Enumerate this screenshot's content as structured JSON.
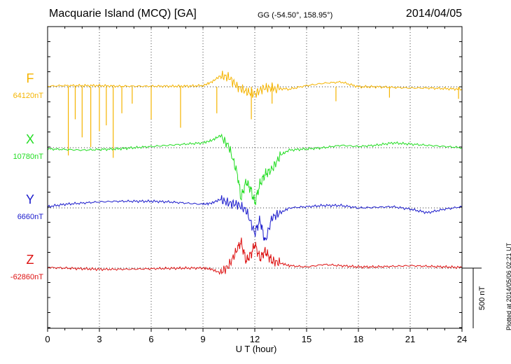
{
  "header": {
    "title": "Macquarie Island (MCQ)  [GA]",
    "coords": "GG (-54.50°, 158.95°)",
    "date": "2014/04/05"
  },
  "footer": {
    "plotted": "Plotted at 2014/05/06 02:21  UT"
  },
  "chart_data": {
    "type": "line",
    "title": "Macquarie Island (MCQ)  [GA]",
    "xlabel": "U T (hour)",
    "ylabel": "",
    "xlim": [
      0,
      24
    ],
    "x_ticks": [
      "0",
      "3",
      "6",
      "9",
      "12",
      "15",
      "18",
      "21",
      "24"
    ],
    "scale_bar": {
      "label": "500 nT",
      "value_nT": 500
    },
    "grid": true,
    "series": [
      {
        "name": "F",
        "baseline_label": "64120nT",
        "baseline": 64120,
        "color": "#f5b400",
        "x": [
          0,
          1,
          2,
          3,
          4,
          5,
          6,
          7,
          8,
          9,
          9.5,
          10,
          10.5,
          11,
          11.5,
          12,
          12.5,
          13,
          14,
          15,
          16,
          17,
          18,
          19,
          20,
          21,
          22,
          23,
          24
        ],
        "values": [
          64125,
          64130,
          64130,
          64130,
          64125,
          64125,
          64125,
          64125,
          64125,
          64130,
          64160,
          64210,
          64200,
          64120,
          64080,
          64060,
          64110,
          64110,
          64100,
          64130,
          64150,
          64160,
          64120,
          64120,
          64115,
          64110,
          64110,
          64105,
          64100
        ],
        "spikes": [
          {
            "x": 1.2,
            "value": 63550
          },
          {
            "x": 1.6,
            "value": 63850
          },
          {
            "x": 2.0,
            "value": 63700
          },
          {
            "x": 2.5,
            "value": 63620
          },
          {
            "x": 3.0,
            "value": 63750
          },
          {
            "x": 3.4,
            "value": 63800
          },
          {
            "x": 3.8,
            "value": 63530
          },
          {
            "x": 4.3,
            "value": 63900
          },
          {
            "x": 4.9,
            "value": 63980
          },
          {
            "x": 6.0,
            "value": 63850
          },
          {
            "x": 7.7,
            "value": 63780
          },
          {
            "x": 9.8,
            "value": 63900
          },
          {
            "x": 11.8,
            "value": 63850
          },
          {
            "x": 13.0,
            "value": 63980
          },
          {
            "x": 16.7,
            "value": 64000
          },
          {
            "x": 19.8,
            "value": 64030
          },
          {
            "x": 23.8,
            "value": 64020
          }
        ]
      },
      {
        "name": "X",
        "baseline_label": "10780nT",
        "baseline": 10780,
        "color": "#22dd22",
        "x": [
          0,
          1,
          2,
          3,
          4,
          5,
          6,
          7,
          8,
          9,
          9.5,
          10,
          10.5,
          11,
          11.2,
          11.5,
          11.8,
          12,
          12.3,
          12.6,
          13,
          13.5,
          14,
          15,
          16,
          17,
          18,
          19,
          20,
          21,
          22,
          23,
          24
        ],
        "values": [
          10770,
          10765,
          10760,
          10765,
          10770,
          10780,
          10790,
          10800,
          10810,
          10820,
          10840,
          10880,
          10790,
          10560,
          10360,
          10500,
          10420,
          10320,
          10480,
          10560,
          10600,
          10720,
          10760,
          10770,
          10780,
          10800,
          10790,
          10800,
          10820,
          10810,
          10800,
          10790,
          10780
        ]
      },
      {
        "name": "Y",
        "baseline_label": "6660nT",
        "baseline": 6660,
        "color": "#1a1acc",
        "x": [
          0,
          1,
          2,
          3,
          4,
          5,
          6,
          7,
          8,
          9,
          9.5,
          10,
          10.5,
          11,
          11.5,
          12,
          12.3,
          12.6,
          13,
          13.5,
          14,
          15,
          16,
          17,
          18,
          19,
          20,
          21,
          22,
          23,
          24
        ],
        "values": [
          6670,
          6690,
          6700,
          6710,
          6715,
          6715,
          6715,
          6710,
          6700,
          6690,
          6700,
          6730,
          6700,
          6690,
          6640,
          6450,
          6560,
          6380,
          6580,
          6620,
          6660,
          6670,
          6680,
          6680,
          6660,
          6665,
          6670,
          6650,
          6620,
          6650,
          6670
        ]
      },
      {
        "name": "Z",
        "baseline_label": "-62860nT",
        "baseline": -62860,
        "color": "#dd1111",
        "x": [
          0,
          1,
          2,
          3,
          4,
          5,
          6,
          7,
          8,
          9,
          9.5,
          10,
          10.5,
          11,
          11.2,
          11.5,
          11.8,
          12,
          12.3,
          12.6,
          13,
          13.5,
          14,
          15,
          16,
          17,
          18,
          19,
          20,
          21,
          22,
          23,
          24
        ],
        "values": [
          -62855,
          -62860,
          -62865,
          -62870,
          -62870,
          -62868,
          -62865,
          -62862,
          -62860,
          -62860,
          -62870,
          -62900,
          -62840,
          -62700,
          -62640,
          -62800,
          -62740,
          -62660,
          -62780,
          -62720,
          -62800,
          -62820,
          -62840,
          -62850,
          -62830,
          -62840,
          -62850,
          -62850,
          -62845,
          -62840,
          -62845,
          -62850,
          -62855
        ]
      }
    ]
  }
}
